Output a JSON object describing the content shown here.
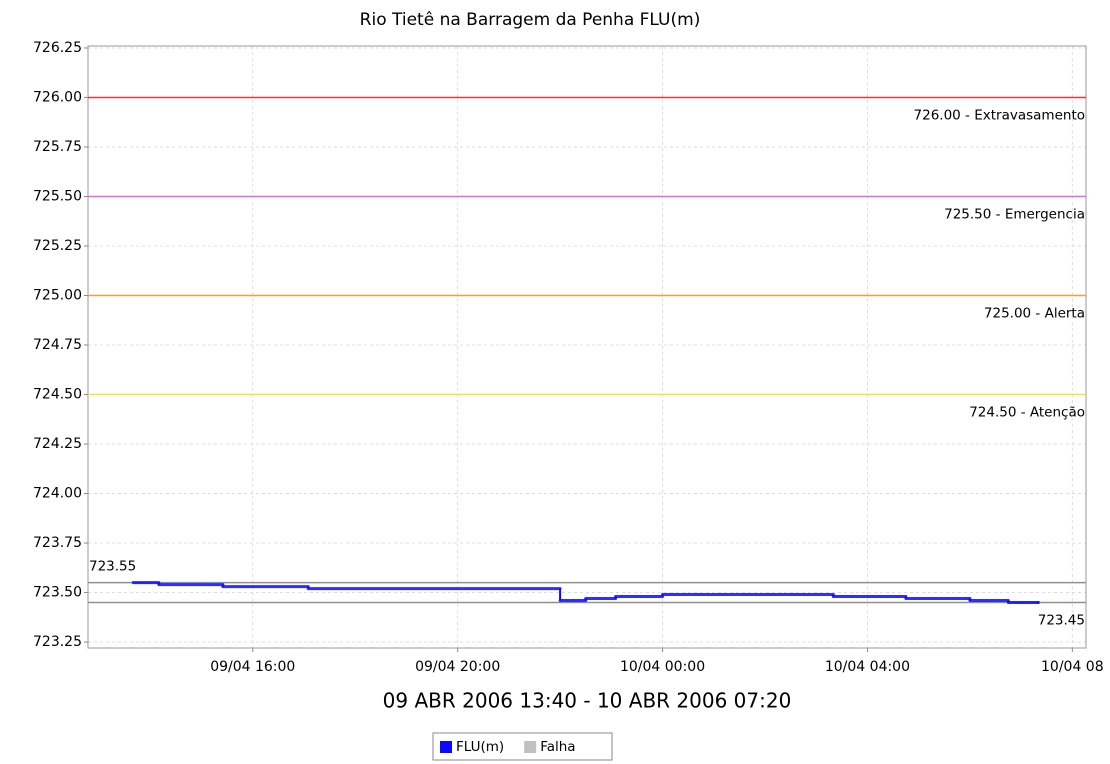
{
  "chart_data": {
    "type": "line",
    "step": true,
    "title": "Rio Tietê na Barragem da Penha FLU(m)",
    "x_label": "09 ABR 2006 13:40 - 10 ABR 2006 07:20",
    "series": [
      {
        "name": "FLU(m)",
        "color": "#0a0aff",
        "x": [
          "2006-04-09T13:40",
          "2006-04-09T14:10",
          "2006-04-09T15:25",
          "2006-04-09T17:05",
          "2006-04-09T22:00",
          "2006-04-09T22:30",
          "2006-04-09T23:05",
          "2006-04-10T00:00",
          "2006-04-10T03:20",
          "2006-04-10T04:45",
          "2006-04-10T06:00",
          "2006-04-10T06:45",
          "2006-04-10T07:20"
        ],
        "values": [
          723.55,
          723.54,
          723.53,
          723.52,
          723.46,
          723.47,
          723.48,
          723.49,
          723.48,
          723.47,
          723.46,
          723.45,
          723.45
        ]
      },
      {
        "name": "Falha",
        "color": "#c0c0c0",
        "x": [],
        "values": []
      }
    ],
    "markers": [
      {
        "value": 726,
        "label": "726.00 - Extravasamento",
        "color": "#e83a3a",
        "position": "bottom-right"
      },
      {
        "value": 725.5,
        "label": "725.50 - Emergencia",
        "color": "#e466e4",
        "position": "bottom-right"
      },
      {
        "value": 725,
        "label": "725.00 - Alerta",
        "color": "#f0a040",
        "position": "bottom-right"
      },
      {
        "value": 724.5,
        "label": "724.50 - Atenção",
        "color": "#f0e040",
        "position": "bottom-right"
      },
      {
        "value": 723.55,
        "label": "723.55",
        "color": "#909090",
        "position": "top-left"
      },
      {
        "value": 723.45,
        "label": "723.45",
        "color": "#909090",
        "position": "bottom-right"
      }
    ],
    "xlim": [
      "2006-04-09T12:47",
      "2006-04-10T08:16"
    ],
    "xticks": [
      {
        "value": "2006-04-09T16:00",
        "label": "09/04 16:00"
      },
      {
        "value": "2006-04-09T20:00",
        "label": "09/04 20:00"
      },
      {
        "value": "2006-04-10T00:00",
        "label": "10/04 00:00"
      },
      {
        "value": "2006-04-10T04:00",
        "label": "10/04 04:00"
      },
      {
        "value": "2006-04-10T08:00",
        "label": "10/04 08"
      }
    ],
    "ylim": [
      723.22,
      726.26
    ],
    "yticks": [
      726.25,
      {
        "value": 726,
        "label": "726.00"
      },
      725.75,
      {
        "value": 725.5,
        "label": "725.50"
      },
      725.25,
      {
        "value": 725,
        "label": "725.00"
      },
      724.75,
      {
        "value": 724.5,
        "label": "724.50"
      },
      724.25,
      {
        "value": 724,
        "label": "724.00"
      },
      723.75,
      {
        "value": 723.5,
        "label": "723.50"
      },
      723.25
    ],
    "grid": true
  }
}
